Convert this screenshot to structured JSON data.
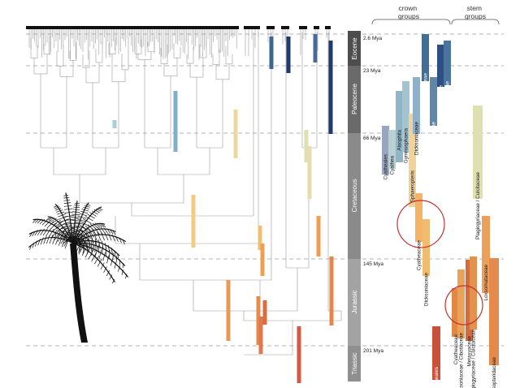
{
  "headers": {
    "crown": "crown\ngroups",
    "stem": "stem\ngroups"
  },
  "periods": [
    {
      "name": "Eocene",
      "color": "#4d4d4d"
    },
    {
      "name": "Paleocene",
      "color": "#6a6a6a"
    },
    {
      "name": "Cretaceous",
      "color": "#8a8a8a"
    },
    {
      "name": "Jurassic",
      "color": "#a3a3a3"
    },
    {
      "name": "Triassic",
      "color": "#8f8f8f"
    }
  ],
  "ages": [
    "2.6 Mya",
    "23 Mya",
    "66 Mya",
    "145 Mya",
    "201 Mya"
  ],
  "crown_bars": [
    {
      "label": "Cyatheales",
      "color": "#9aa6c0",
      "mode": "above"
    },
    {
      "label": "Cyathea",
      "color": "#b8d0d3"
    },
    {
      "label": "Alsophila",
      "color": "#8fb5c6"
    },
    {
      "label": "Gymnosphaera",
      "color": "#a3c3cf"
    },
    {
      "label": "Sphaeropteris",
      "color": "#f0d39a"
    },
    {
      "label": "Dicksoniaceae",
      "color": "#8fb0c8"
    },
    {
      "label": "Metaxyaceae",
      "color": "#3f6f96"
    },
    {
      "label": "Plagiogyriaceae",
      "color": "#5f88a8"
    },
    {
      "label": "Culcitaceae",
      "color": "#2f4f80"
    },
    {
      "label": "Loxsomataceae",
      "color": "#4a75a0"
    },
    {
      "label": "Cyatheaceae",
      "color": "#f3b466"
    },
    {
      "label": "Dicksoniaceae",
      "color": "#f0bc72"
    }
  ],
  "stem_bars": [
    {
      "label": "Plagiogyriaceae / Culcitaceae",
      "color": "#dfe0b0"
    },
    {
      "label": "Loxsomataceae",
      "color": "#eda05a"
    },
    {
      "label": "Thyrsopteridaceae",
      "color": "#e48a4e"
    },
    {
      "label": "Cyatheaceae",
      "color": "#e08845"
    },
    {
      "label": "Dicksoniaceae / Cibotiaceae",
      "color": "#e9a25a"
    },
    {
      "label": "Metaxyaceae",
      "color": "#d66a3f"
    },
    {
      "label": "Plagiogyriaceae / Culcitaceae",
      "color": "#e3914f"
    },
    {
      "label": "Cyatheales",
      "color": "#c9503a"
    }
  ],
  "circle_color": "#c43030",
  "tree_color": "#9a9a9a",
  "silhouette": "tree-fern"
}
